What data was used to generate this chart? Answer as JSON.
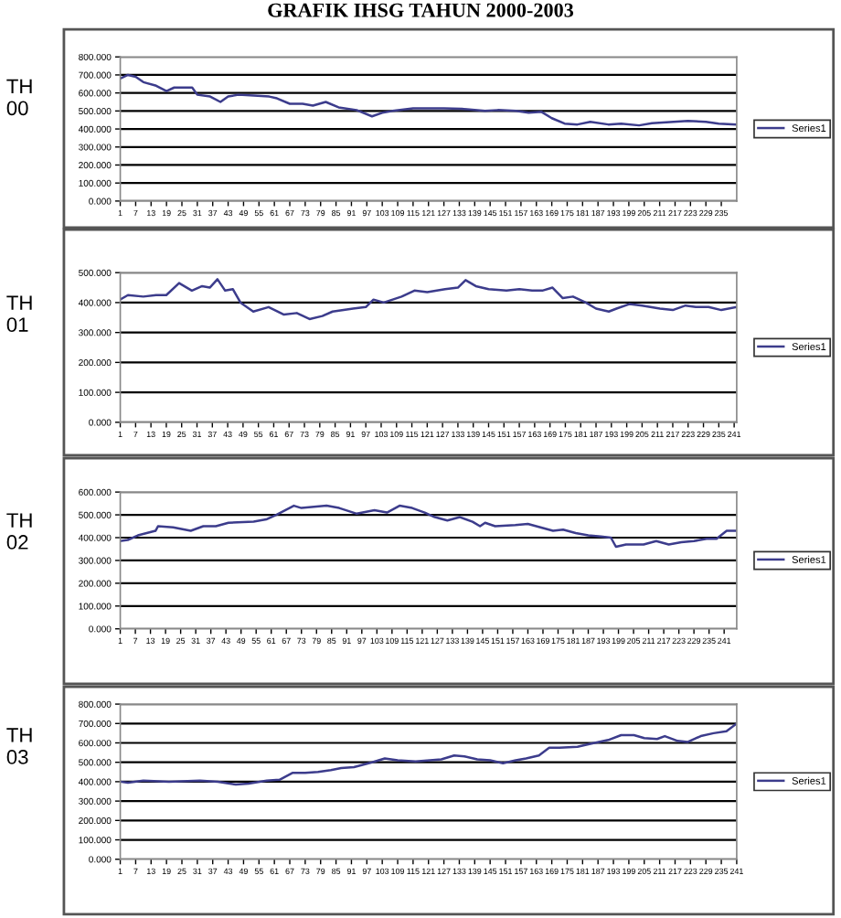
{
  "chart_data": [
    {
      "type": "line",
      "title": "GRAFIK IHSG TAHUN 2000-2003",
      "ylabel": "TH\n00",
      "legend": "right",
      "grid": "y",
      "marker": "none",
      "line_style": "solid",
      "xlim": [
        1,
        241
      ],
      "xticks": [
        1,
        7,
        13,
        19,
        25,
        31,
        37,
        43,
        49,
        55,
        61,
        67,
        73,
        79,
        85,
        91,
        97,
        103,
        109,
        115,
        121,
        127,
        133,
        139,
        145,
        151,
        157,
        163,
        169,
        175,
        181,
        187,
        193,
        199,
        205,
        211,
        217,
        223,
        229,
        235
      ],
      "ylim": [
        0,
        800
      ],
      "yticks": [
        {
          "value": 0,
          "label": "0.000"
        },
        {
          "value": 100,
          "label": "100.000"
        },
        {
          "value": 200,
          "label": "200.000"
        },
        {
          "value": 300,
          "label": "300.000"
        },
        {
          "value": 400,
          "label": "400.000"
        },
        {
          "value": 500,
          "label": "500.000"
        },
        {
          "value": 600,
          "label": "600.000"
        },
        {
          "value": 700,
          "label": "700.000"
        },
        {
          "value": 800,
          "label": "800.000"
        }
      ],
      "series": [
        {
          "name": "Series1",
          "color": "#3c3c8c",
          "x": [
            1,
            4,
            7,
            10,
            15,
            19,
            22,
            29,
            31,
            36,
            40,
            43,
            47,
            53,
            59,
            62,
            67,
            72,
            76,
            81,
            86,
            93,
            99,
            103,
            107,
            115,
            127,
            134,
            143,
            148,
            155,
            160,
            165,
            169,
            174,
            179,
            184,
            191,
            196,
            203,
            208,
            215,
            222,
            229,
            234,
            241
          ],
          "values": [
            680,
            700,
            690,
            660,
            640,
            610,
            630,
            630,
            590,
            580,
            550,
            580,
            590,
            585,
            580,
            570,
            540,
            540,
            530,
            550,
            520,
            505,
            470,
            490,
            500,
            515,
            515,
            512,
            500,
            505,
            500,
            490,
            495,
            460,
            430,
            425,
            440,
            425,
            430,
            420,
            432,
            438,
            445,
            440,
            430,
            425
          ]
        }
      ]
    },
    {
      "type": "line",
      "ylabel": "TH\n01",
      "legend": "right",
      "grid": "y",
      "marker": "none",
      "line_style": "solid",
      "xlim": [
        1,
        242
      ],
      "xticks": [
        1,
        7,
        13,
        19,
        25,
        31,
        37,
        43,
        49,
        55,
        61,
        67,
        73,
        79,
        85,
        91,
        97,
        103,
        109,
        115,
        121,
        127,
        133,
        139,
        145,
        151,
        157,
        163,
        169,
        175,
        181,
        187,
        193,
        199,
        205,
        211,
        217,
        223,
        229,
        235,
        241
      ],
      "ylim": [
        0,
        500
      ],
      "yticks": [
        {
          "value": 0,
          "label": "0.000"
        },
        {
          "value": 100,
          "label": "100.000"
        },
        {
          "value": 200,
          "label": "200.000"
        },
        {
          "value": 300,
          "label": "300.000"
        },
        {
          "value": 400,
          "label": "400.000"
        },
        {
          "value": 500,
          "label": "500.000"
        }
      ],
      "series": [
        {
          "name": "Series1",
          "color": "#3c3c8c",
          "x": [
            1,
            4,
            10,
            15,
            19,
            24,
            29,
            33,
            36,
            39,
            42,
            45,
            48,
            53,
            59,
            65,
            70,
            75,
            80,
            84,
            92,
            97,
            100,
            104,
            111,
            116,
            121,
            128,
            133,
            136,
            140,
            145,
            152,
            157,
            162,
            166,
            170,
            174,
            178,
            183,
            187,
            192,
            195,
            200,
            205,
            212,
            217,
            222,
            226,
            231,
            236,
            242
          ],
          "values": [
            410,
            425,
            420,
            425,
            425,
            465,
            440,
            455,
            450,
            478,
            440,
            445,
            400,
            370,
            385,
            360,
            365,
            345,
            355,
            370,
            380,
            385,
            410,
            400,
            420,
            440,
            435,
            445,
            450,
            475,
            455,
            445,
            440,
            445,
            440,
            440,
            450,
            415,
            420,
            400,
            380,
            370,
            380,
            395,
            390,
            380,
            375,
            390,
            385,
            385,
            375,
            385
          ]
        }
      ]
    },
    {
      "type": "line",
      "ylabel": "TH\n02",
      "legend": "right",
      "grid": "y",
      "marker": "none",
      "line_style": "solid",
      "xlim": [
        1,
        246
      ],
      "xticks": [
        1,
        7,
        13,
        19,
        25,
        31,
        37,
        43,
        49,
        55,
        61,
        67,
        73,
        79,
        85,
        91,
        97,
        103,
        109,
        115,
        121,
        127,
        133,
        139,
        145,
        151,
        157,
        163,
        169,
        175,
        181,
        187,
        193,
        199,
        205,
        211,
        217,
        223,
        229,
        235,
        241
      ],
      "ylim": [
        0,
        600
      ],
      "yticks": [
        {
          "value": 0,
          "label": "0.000"
        },
        {
          "value": 100,
          "label": "100.000"
        },
        {
          "value": 200,
          "label": "200.000"
        },
        {
          "value": 300,
          "label": "300.000"
        },
        {
          "value": 400,
          "label": "400.000"
        },
        {
          "value": 500,
          "label": "500.000"
        },
        {
          "value": 600,
          "label": "600.000"
        }
      ],
      "series": [
        {
          "name": "Series1",
          "color": "#3c3c8c",
          "x": [
            1,
            4,
            8,
            15,
            16,
            22,
            29,
            34,
            39,
            44,
            54,
            59,
            63,
            70,
            73,
            78,
            83,
            88,
            95,
            102,
            107,
            112,
            117,
            122,
            126,
            131,
            136,
            141,
            144,
            146,
            150,
            158,
            163,
            168,
            173,
            177,
            182,
            187,
            192,
            196,
            198,
            202,
            209,
            214,
            219,
            224,
            229,
            234,
            238,
            242,
            246
          ],
          "values": [
            385,
            390,
            410,
            430,
            450,
            445,
            430,
            450,
            450,
            465,
            470,
            480,
            500,
            540,
            530,
            535,
            540,
            530,
            505,
            520,
            510,
            540,
            530,
            510,
            490,
            475,
            490,
            470,
            450,
            465,
            450,
            455,
            460,
            445,
            430,
            435,
            420,
            410,
            405,
            400,
            360,
            370,
            370,
            385,
            370,
            380,
            385,
            395,
            395,
            430,
            430
          ]
        }
      ]
    },
    {
      "type": "line",
      "ylabel": "TH\n03",
      "legend": "right",
      "grid": "y",
      "marker": "none",
      "line_style": "solid",
      "xlim": [
        1,
        241
      ],
      "xticks": [
        1,
        7,
        13,
        19,
        25,
        31,
        37,
        43,
        49,
        55,
        61,
        67,
        73,
        79,
        85,
        91,
        97,
        103,
        109,
        115,
        121,
        127,
        133,
        139,
        145,
        151,
        157,
        163,
        169,
        175,
        181,
        187,
        193,
        199,
        205,
        211,
        217,
        223,
        229,
        235,
        241
      ],
      "ylim": [
        0,
        800
      ],
      "yticks": [
        {
          "value": 0,
          "label": "0.000"
        },
        {
          "value": 100,
          "label": "100.000"
        },
        {
          "value": 200,
          "label": "200.000"
        },
        {
          "value": 300,
          "label": "300.000"
        },
        {
          "value": 400,
          "label": "400.000"
        },
        {
          "value": 500,
          "label": "500.000"
        },
        {
          "value": 600,
          "label": "600.000"
        },
        {
          "value": 700,
          "label": "700.000"
        },
        {
          "value": 800,
          "label": "800.000"
        }
      ],
      "series": [
        {
          "name": "Series1",
          "color": "#3c3c8c",
          "x": [
            1,
            4,
            10,
            20,
            32,
            39,
            46,
            51,
            58,
            63,
            68,
            73,
            78,
            83,
            87,
            92,
            99,
            104,
            109,
            116,
            126,
            131,
            135,
            140,
            145,
            150,
            155,
            159,
            164,
            168,
            172,
            179,
            184,
            191,
            196,
            201,
            205,
            210,
            213,
            218,
            222,
            227,
            232,
            237,
            241
          ],
          "values": [
            400,
            395,
            405,
            400,
            405,
            400,
            385,
            390,
            405,
            410,
            445,
            445,
            450,
            460,
            470,
            475,
            500,
            520,
            510,
            505,
            515,
            535,
            530,
            515,
            510,
            495,
            510,
            520,
            535,
            575,
            575,
            580,
            595,
            615,
            640,
            640,
            625,
            620,
            635,
            610,
            605,
            635,
            650,
            660,
            700
          ]
        }
      ]
    }
  ]
}
